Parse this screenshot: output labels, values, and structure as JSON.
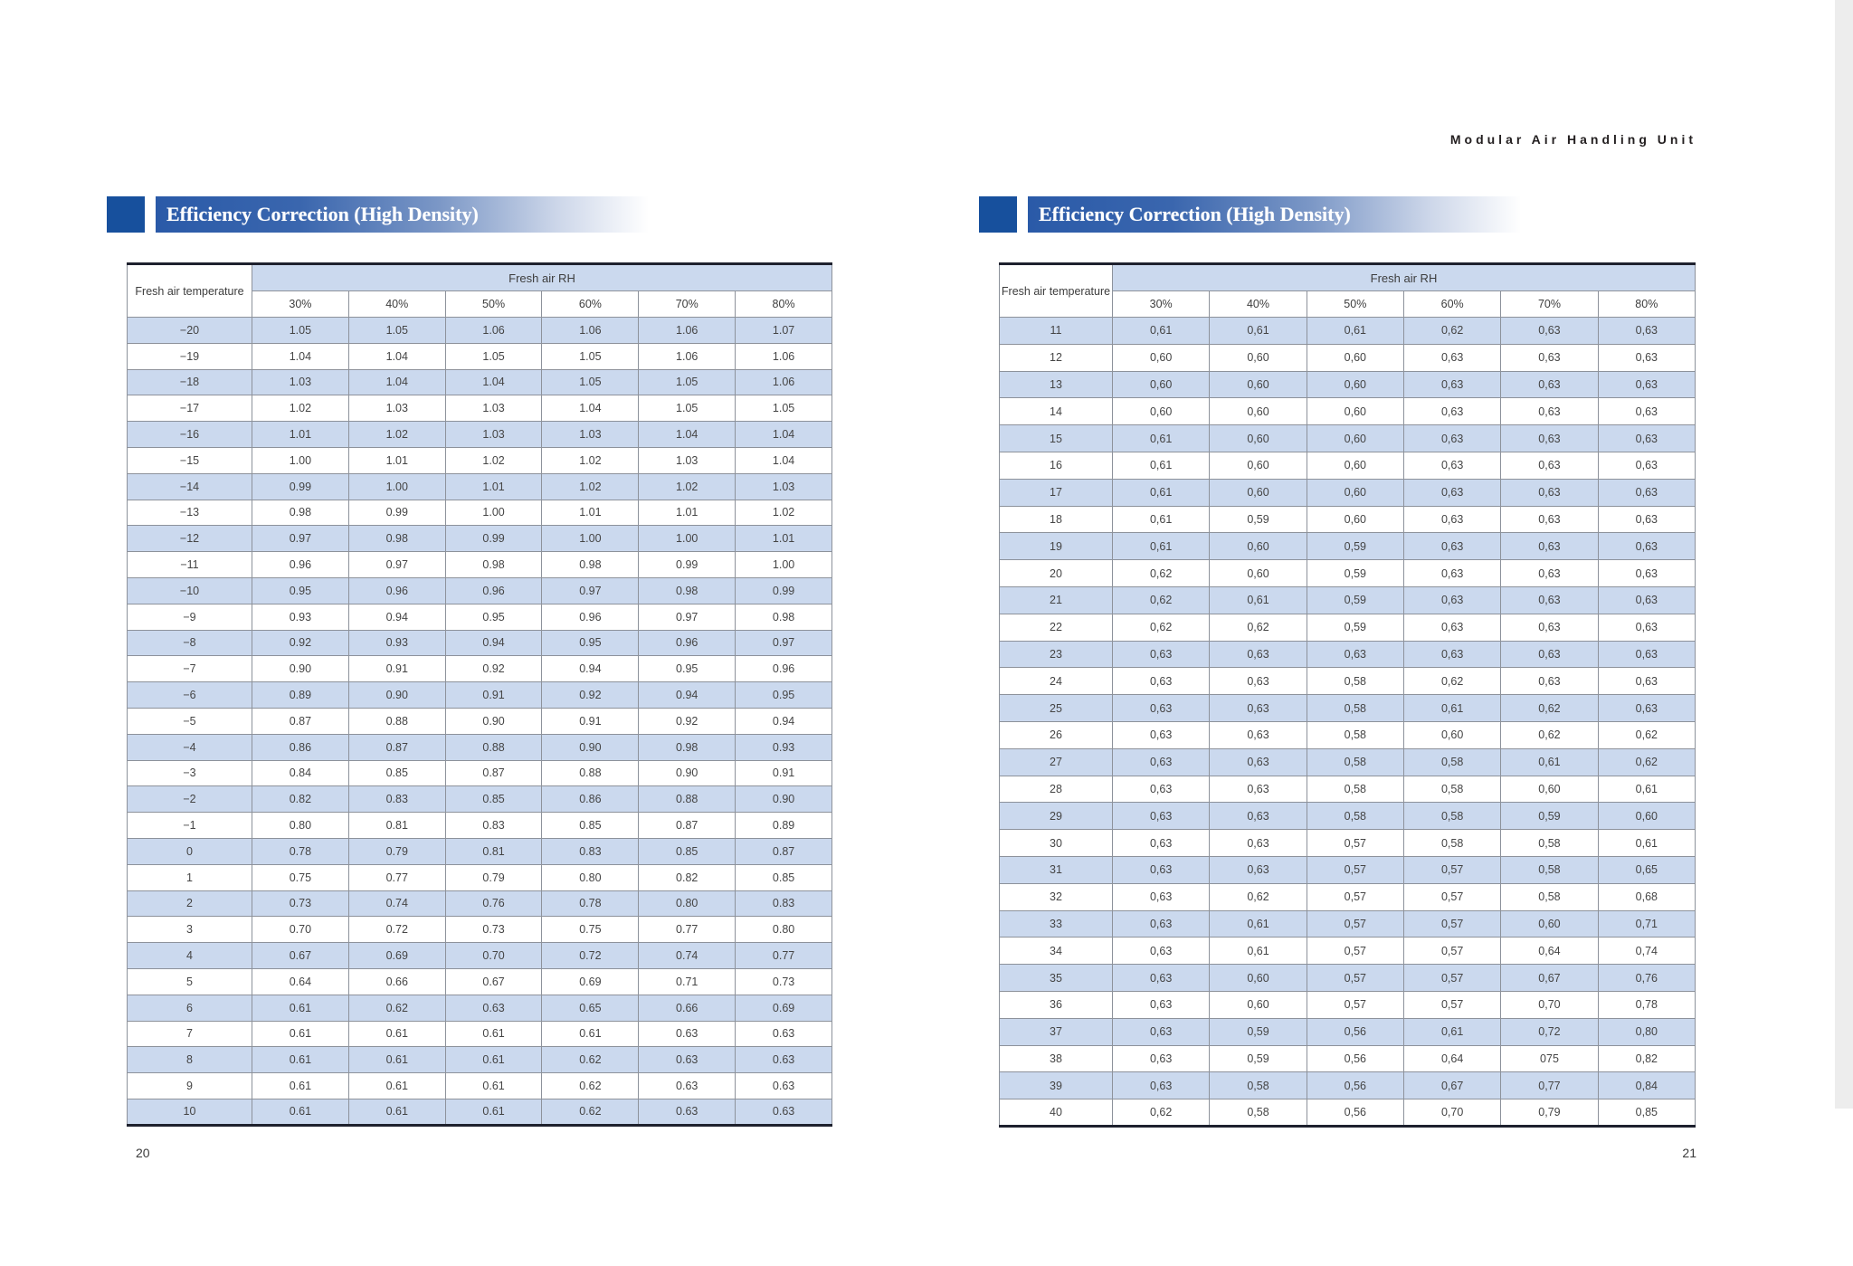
{
  "doc_header": "Modular Air Handling Unit",
  "left_page": {
    "page_number": "20",
    "section_title": "Efficiency Correction (High Density)",
    "table": {
      "row_header": "Fresh air temperature",
      "col_group_header": "Fresh air RH",
      "columns": [
        "30%",
        "40%",
        "50%",
        "60%",
        "70%",
        "80%"
      ],
      "rows": [
        {
          "temp": "−20",
          "values": [
            "1.05",
            "1.05",
            "1.06",
            "1.06",
            "1.06",
            "1.07"
          ]
        },
        {
          "temp": "−19",
          "values": [
            "1.04",
            "1.04",
            "1.05",
            "1.05",
            "1.06",
            "1.06"
          ]
        },
        {
          "temp": "−18",
          "values": [
            "1.03",
            "1.04",
            "1.04",
            "1.05",
            "1.05",
            "1.06"
          ]
        },
        {
          "temp": "−17",
          "values": [
            "1.02",
            "1.03",
            "1.03",
            "1.04",
            "1.05",
            "1.05"
          ]
        },
        {
          "temp": "−16",
          "values": [
            "1.01",
            "1.02",
            "1.03",
            "1.03",
            "1.04",
            "1.04"
          ]
        },
        {
          "temp": "−15",
          "values": [
            "1.00",
            "1.01",
            "1.02",
            "1.02",
            "1.03",
            "1.04"
          ]
        },
        {
          "temp": "−14",
          "values": [
            "0.99",
            "1.00",
            "1.01",
            "1.02",
            "1.02",
            "1.03"
          ]
        },
        {
          "temp": "−13",
          "values": [
            "0.98",
            "0.99",
            "1.00",
            "1.01",
            "1.01",
            "1.02"
          ]
        },
        {
          "temp": "−12",
          "values": [
            "0.97",
            "0.98",
            "0.99",
            "1.00",
            "1.00",
            "1.01"
          ]
        },
        {
          "temp": "−11",
          "values": [
            "0.96",
            "0.97",
            "0.98",
            "0.98",
            "0.99",
            "1.00"
          ]
        },
        {
          "temp": "−10",
          "values": [
            "0.95",
            "0.96",
            "0.96",
            "0.97",
            "0.98",
            "0.99"
          ]
        },
        {
          "temp": "−9",
          "values": [
            "0.93",
            "0.94",
            "0.95",
            "0.96",
            "0.97",
            "0.98"
          ]
        },
        {
          "temp": "−8",
          "values": [
            "0.92",
            "0.93",
            "0.94",
            "0.95",
            "0.96",
            "0.97"
          ]
        },
        {
          "temp": "−7",
          "values": [
            "0.90",
            "0.91",
            "0.92",
            "0.94",
            "0.95",
            "0.96"
          ]
        },
        {
          "temp": "−6",
          "values": [
            "0.89",
            "0.90",
            "0.91",
            "0.92",
            "0.94",
            "0.95"
          ]
        },
        {
          "temp": "−5",
          "values": [
            "0.87",
            "0.88",
            "0.90",
            "0.91",
            "0.92",
            "0.94"
          ]
        },
        {
          "temp": "−4",
          "values": [
            "0.86",
            "0.87",
            "0.88",
            "0.90",
            "0.98",
            "0.93"
          ]
        },
        {
          "temp": "−3",
          "values": [
            "0.84",
            "0.85",
            "0.87",
            "0.88",
            "0.90",
            "0.91"
          ]
        },
        {
          "temp": "−2",
          "values": [
            "0.82",
            "0.83",
            "0.85",
            "0.86",
            "0.88",
            "0.90"
          ]
        },
        {
          "temp": "−1",
          "values": [
            "0.80",
            "0.81",
            "0.83",
            "0.85",
            "0.87",
            "0.89"
          ]
        },
        {
          "temp": "0",
          "values": [
            "0.78",
            "0.79",
            "0.81",
            "0.83",
            "0.85",
            "0.87"
          ]
        },
        {
          "temp": "1",
          "values": [
            "0.75",
            "0.77",
            "0.79",
            "0.80",
            "0.82",
            "0.85"
          ]
        },
        {
          "temp": "2",
          "values": [
            "0.73",
            "0.74",
            "0.76",
            "0.78",
            "0.80",
            "0.83"
          ]
        },
        {
          "temp": "3",
          "values": [
            "0.70",
            "0.72",
            "0.73",
            "0.75",
            "0.77",
            "0.80"
          ]
        },
        {
          "temp": "4",
          "values": [
            "0.67",
            "0.69",
            "0.70",
            "0.72",
            "0.74",
            "0.77"
          ]
        },
        {
          "temp": "5",
          "values": [
            "0.64",
            "0.66",
            "0.67",
            "0.69",
            "0.71",
            "0.73"
          ]
        },
        {
          "temp": "6",
          "values": [
            "0.61",
            "0.62",
            "0.63",
            "0.65",
            "0.66",
            "0.69"
          ]
        },
        {
          "temp": "7",
          "values": [
            "0.61",
            "0.61",
            "0.61",
            "0.61",
            "0.63",
            "0.63"
          ]
        },
        {
          "temp": "8",
          "values": [
            "0.61",
            "0.61",
            "0.61",
            "0.62",
            "0.63",
            "0.63"
          ]
        },
        {
          "temp": "9",
          "values": [
            "0.61",
            "0.61",
            "0.61",
            "0.62",
            "0.63",
            "0.63"
          ]
        },
        {
          "temp": "10",
          "values": [
            "0.61",
            "0.61",
            "0.61",
            "0.62",
            "0.63",
            "0.63"
          ]
        }
      ]
    }
  },
  "right_page": {
    "page_number": "21",
    "section_title": "Efficiency Correction (High Density)",
    "table": {
      "row_header": "Fresh air temperature",
      "col_group_header": "Fresh air RH",
      "columns": [
        "30%",
        "40%",
        "50%",
        "60%",
        "70%",
        "80%"
      ],
      "rows": [
        {
          "temp": "11",
          "values": [
            "0,61",
            "0,61",
            "0,61",
            "0,62",
            "0,63",
            "0,63"
          ]
        },
        {
          "temp": "12",
          "values": [
            "0,60",
            "0,60",
            "0,60",
            "0,63",
            "0,63",
            "0,63"
          ]
        },
        {
          "temp": "13",
          "values": [
            "0,60",
            "0,60",
            "0,60",
            "0,63",
            "0,63",
            "0,63"
          ]
        },
        {
          "temp": "14",
          "values": [
            "0,60",
            "0,60",
            "0,60",
            "0,63",
            "0,63",
            "0,63"
          ]
        },
        {
          "temp": "15",
          "values": [
            "0,61",
            "0,60",
            "0,60",
            "0,63",
            "0,63",
            "0,63"
          ]
        },
        {
          "temp": "16",
          "values": [
            "0,61",
            "0,60",
            "0,60",
            "0,63",
            "0,63",
            "0,63"
          ]
        },
        {
          "temp": "17",
          "values": [
            "0,61",
            "0,60",
            "0,60",
            "0,63",
            "0,63",
            "0,63"
          ]
        },
        {
          "temp": "18",
          "values": [
            "0,61",
            "0,59",
            "0,60",
            "0,63",
            "0,63",
            "0,63"
          ]
        },
        {
          "temp": "19",
          "values": [
            "0,61",
            "0,60",
            "0,59",
            "0,63",
            "0,63",
            "0,63"
          ]
        },
        {
          "temp": "20",
          "values": [
            "0,62",
            "0,60",
            "0,59",
            "0,63",
            "0,63",
            "0,63"
          ]
        },
        {
          "temp": "21",
          "values": [
            "0,62",
            "0,61",
            "0,59",
            "0,63",
            "0,63",
            "0,63"
          ]
        },
        {
          "temp": "22",
          "values": [
            "0,62",
            "0,62",
            "0,59",
            "0,63",
            "0,63",
            "0,63"
          ]
        },
        {
          "temp": "23",
          "values": [
            "0,63",
            "0,63",
            "0,63",
            "0,63",
            "0,63",
            "0,63"
          ]
        },
        {
          "temp": "24",
          "values": [
            "0,63",
            "0,63",
            "0,58",
            "0,62",
            "0,63",
            "0,63"
          ]
        },
        {
          "temp": "25",
          "values": [
            "0,63",
            "0,63",
            "0,58",
            "0,61",
            "0,62",
            "0,63"
          ]
        },
        {
          "temp": "26",
          "values": [
            "0,63",
            "0,63",
            "0,58",
            "0,60",
            "0,62",
            "0,62"
          ]
        },
        {
          "temp": "27",
          "values": [
            "0,63",
            "0,63",
            "0,58",
            "0,58",
            "0,61",
            "0,62"
          ]
        },
        {
          "temp": "28",
          "values": [
            "0,63",
            "0,63",
            "0,58",
            "0,58",
            "0,60",
            "0,61"
          ]
        },
        {
          "temp": "29",
          "values": [
            "0,63",
            "0,63",
            "0,58",
            "0,58",
            "0,59",
            "0,60"
          ]
        },
        {
          "temp": "30",
          "values": [
            "0,63",
            "0,63",
            "0,57",
            "0,58",
            "0,58",
            "0,61"
          ]
        },
        {
          "temp": "31",
          "values": [
            "0,63",
            "0,63",
            "0,57",
            "0,57",
            "0,58",
            "0,65"
          ]
        },
        {
          "temp": "32",
          "values": [
            "0,63",
            "0,62",
            "0,57",
            "0,57",
            "0,58",
            "0,68"
          ]
        },
        {
          "temp": "33",
          "values": [
            "0,63",
            "0,61",
            "0,57",
            "0,57",
            "0,60",
            "0,71"
          ]
        },
        {
          "temp": "34",
          "values": [
            "0,63",
            "0,61",
            "0,57",
            "0,57",
            "0,64",
            "0,74"
          ]
        },
        {
          "temp": "35",
          "values": [
            "0,63",
            "0,60",
            "0,57",
            "0,57",
            "0,67",
            "0,76"
          ]
        },
        {
          "temp": "36",
          "values": [
            "0,63",
            "0,60",
            "0,57",
            "0,57",
            "0,70",
            "0,78"
          ]
        },
        {
          "temp": "37",
          "values": [
            "0,63",
            "0,59",
            "0,56",
            "0,61",
            "0,72",
            "0,80"
          ]
        },
        {
          "temp": "38",
          "values": [
            "0,63",
            "0,59",
            "0,56",
            "0,64",
            "075",
            "0,82"
          ]
        },
        {
          "temp": "39",
          "values": [
            "0,63",
            "0,58",
            "0,56",
            "0,67",
            "0,77",
            "0,84"
          ]
        },
        {
          "temp": "40",
          "values": [
            "0,62",
            "0,58",
            "0,56",
            "0,70",
            "0,79",
            "0,85"
          ]
        }
      ]
    }
  }
}
